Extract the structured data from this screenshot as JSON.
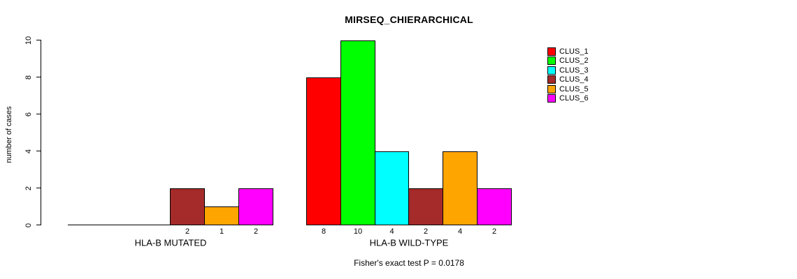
{
  "chart_data": {
    "type": "bar",
    "title": "MIRSEQ_CHIERARCHICAL",
    "xlabel": "",
    "ylabel": "number of cases",
    "categories": [
      "HLA-B MUTATED",
      "HLA-B WILD-TYPE"
    ],
    "series": [
      {
        "name": "CLUS_1",
        "color": "#FF0000",
        "values": [
          0,
          8
        ]
      },
      {
        "name": "CLUS_2",
        "color": "#00FF00",
        "values": [
          0,
          10
        ]
      },
      {
        "name": "CLUS_3",
        "color": "#00FFFF",
        "values": [
          0,
          4
        ]
      },
      {
        "name": "CLUS_4",
        "color": "#A52A2A",
        "values": [
          2,
          2
        ]
      },
      {
        "name": "CLUS_5",
        "color": "#FFA500",
        "values": [
          1,
          4
        ]
      },
      {
        "name": "CLUS_6",
        "color": "#FF00FF",
        "values": [
          2,
          2
        ]
      }
    ],
    "ylim": [
      0,
      10
    ],
    "yticks": [
      0,
      2,
      4,
      6,
      8,
      10
    ],
    "grid": false,
    "legend_position": "right",
    "show_value_labels_under_bars": true,
    "bar_outline_color": "#000000",
    "annotation": "Fisher's exact test P = 0.0178"
  }
}
